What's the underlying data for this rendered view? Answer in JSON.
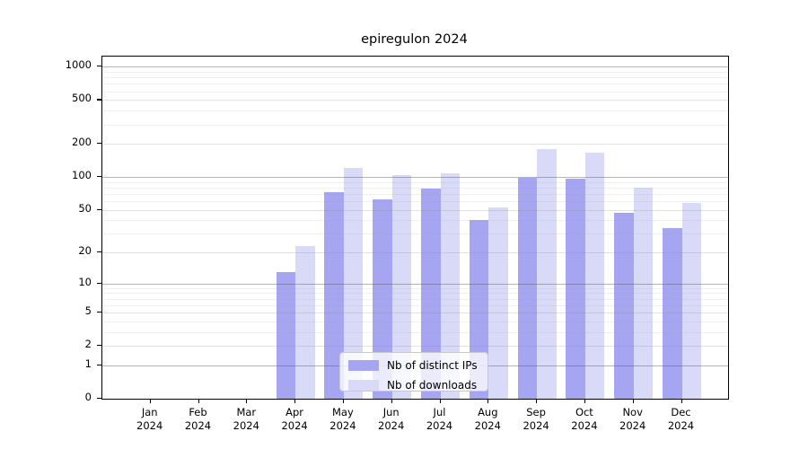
{
  "title": "epiregulon 2024",
  "chart_data": {
    "type": "bar",
    "title": "epiregulon 2024",
    "categories": [
      "Jan",
      "Feb",
      "Mar",
      "Apr",
      "May",
      "Jun",
      "Jul",
      "Aug",
      "Sep",
      "Oct",
      "Nov",
      "Dec"
    ],
    "x_year_label": "2024",
    "series": [
      {
        "name": "Nb of distinct IPs",
        "color": "#a5a5f2",
        "values": [
          0,
          0,
          0,
          13,
          72,
          63,
          78,
          40,
          99,
          96,
          47,
          34
        ]
      },
      {
        "name": "Nb of downloads",
        "color": "#d9d9f8",
        "values": [
          0,
          0,
          0,
          23,
          120,
          104,
          109,
          53,
          181,
          167,
          80,
          58
        ]
      }
    ],
    "y_axis": {
      "scale": "log10(value+1)",
      "tick_values": [
        0,
        1,
        2,
        5,
        10,
        20,
        50,
        100,
        200,
        500,
        1000
      ],
      "tick_labels": [
        "0",
        "1",
        "2",
        "5",
        "10",
        "20",
        "50",
        "100",
        "200",
        "500",
        "1000"
      ],
      "range_max": 1236,
      "grid": true
    },
    "legend_position": "inside-bottom-center"
  }
}
